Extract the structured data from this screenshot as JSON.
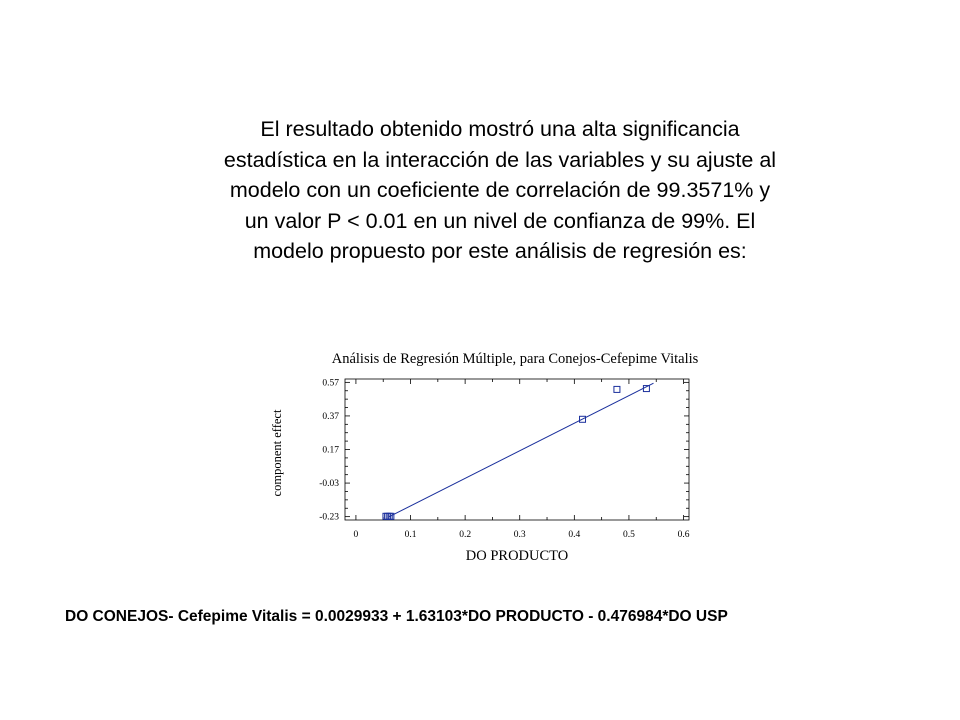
{
  "paragraph": {
    "lines": [
      "El resultado obtenido mostró una alta significancia",
      "estadística en la interacción de las variables y su ajuste al",
      "modelo con un coeficiente de correlación de 99.3571% y",
      "un valor P < 0.01 en un nivel de confianza de 99%. El",
      "modelo propuesto por este análisis de regresión es:"
    ]
  },
  "chart_data": {
    "type": "scatter",
    "title": "Análisis de Regresión Múltiple, para Conejos-Cefepime Vitalis",
    "xlabel": "DO PRODUCTO",
    "ylabel": "component effect",
    "xlim": [
      -0.02,
      0.61
    ],
    "ylim": [
      -0.25,
      0.59
    ],
    "x_ticks": [
      "0",
      "0.1",
      "0.2",
      "0.3",
      "0.4",
      "0.5",
      "0.6"
    ],
    "x_tick_values": [
      0,
      0.1,
      0.2,
      0.3,
      0.4,
      0.5,
      0.6
    ],
    "y_ticks": [
      "0.57",
      "0.37",
      "0.17",
      "-0.03",
      "-0.23"
    ],
    "y_tick_values": [
      0.57,
      0.37,
      0.17,
      -0.03,
      -0.23
    ],
    "points": [
      {
        "x": 0.055,
        "y": -0.228
      },
      {
        "x": 0.058,
        "y": -0.228
      },
      {
        "x": 0.061,
        "y": -0.228
      },
      {
        "x": 0.064,
        "y": -0.228
      },
      {
        "x": 0.415,
        "y": 0.35
      },
      {
        "x": 0.478,
        "y": 0.528
      },
      {
        "x": 0.532,
        "y": 0.533
      }
    ],
    "fit_line": {
      "x": [
        0.06,
        0.545
      ],
      "y": [
        -0.232,
        0.565
      ]
    },
    "grid": false,
    "colors": {
      "points": "#1a2f9c",
      "line": "#1a2f9c",
      "axes": "#000000"
    }
  },
  "equation": "DO CONEJOS- Cefepime Vitalis = 0.0029933 + 1.63103*DO PRODUCTO - 0.476984*DO USP"
}
